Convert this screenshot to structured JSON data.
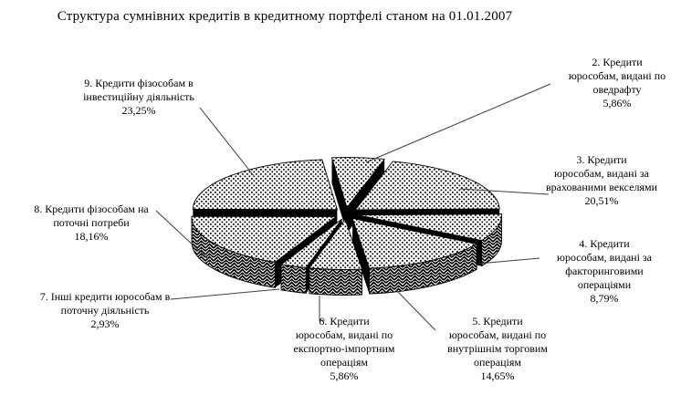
{
  "title": "Структура сумнівних кредитів в кредитному портфелі станом на 01.01.2007",
  "colors": {
    "background": "#ffffff",
    "ink": "#000000",
    "cut_face": "#000000",
    "leader_line": "#3f3f3f",
    "text": "#000000"
  },
  "chart_data": {
    "type": "pie",
    "style": "3d-exploded-monochrome-patterns",
    "title": "Структура сумнівних кредитів в кредитному портфелі станом на 01.01.2007",
    "unit": "%",
    "start_angle_deg": 96,
    "direction": "clockwise",
    "legend_position": "callout-labels",
    "slices": [
      {
        "num": "2",
        "name": "Кредити юрособам, видані по оведрафту",
        "value": 5.86,
        "value_label": "5,86%",
        "label_lines": [
          "2. Кредити",
          "юрособам, видані по",
          "оведрафту",
          "5,86%"
        ]
      },
      {
        "num": "3",
        "name": "Кредити юрособам, видані за врахованими векселями",
        "value": 20.51,
        "value_label": "20,51%",
        "label_lines": [
          "3. Кредити",
          "юрособам, видані за",
          "врахованими векселями",
          "20,51%"
        ]
      },
      {
        "num": "4",
        "name": "Кредити юрособам, видані за факторинговими операціями",
        "value": 8.79,
        "value_label": "8,79%",
        "label_lines": [
          "4. Кредити",
          "юрособам, видані за",
          "факторинговими",
          "операціями",
          "8,79%"
        ]
      },
      {
        "num": "5",
        "name": "Кредити юрособам, видані по внутрішнім торговим операціям",
        "value": 14.65,
        "value_label": "14,65%",
        "label_lines": [
          "5. Кредити",
          "юрособам, видані по",
          "внутрішнім торговим",
          "операціям",
          "14,65%"
        ]
      },
      {
        "num": "6",
        "name": "Кредити юрособам, видані по експортно-імпортним операціям",
        "value": 5.86,
        "value_label": "5,86%",
        "label_lines": [
          "6. Кредити",
          "юрособам, видані по",
          "експортно-імпортним",
          "операціям",
          "5,86%"
        ]
      },
      {
        "num": "7",
        "name": "Інші кредити юрособам в поточну діяльність",
        "value": 2.93,
        "value_label": "2,93%",
        "label_lines": [
          "7. Інші кредити юрособам в",
          "поточну діяльність",
          "2,93%"
        ]
      },
      {
        "num": "8",
        "name": "Кредити фізособам на поточні потреби",
        "value": 18.16,
        "value_label": "18,16%",
        "label_lines": [
          "8. Кредити фізособам на",
          "поточні потреби",
          "18,16%"
        ]
      },
      {
        "num": "9",
        "name": "Кредити фізособам в інвестиційну діяльність",
        "value": 23.25,
        "value_label": "23,25%",
        "label_lines": [
          "9. Кредити фізособам в",
          "інвестиційну діяльність",
          "23,25%"
        ]
      }
    ]
  }
}
